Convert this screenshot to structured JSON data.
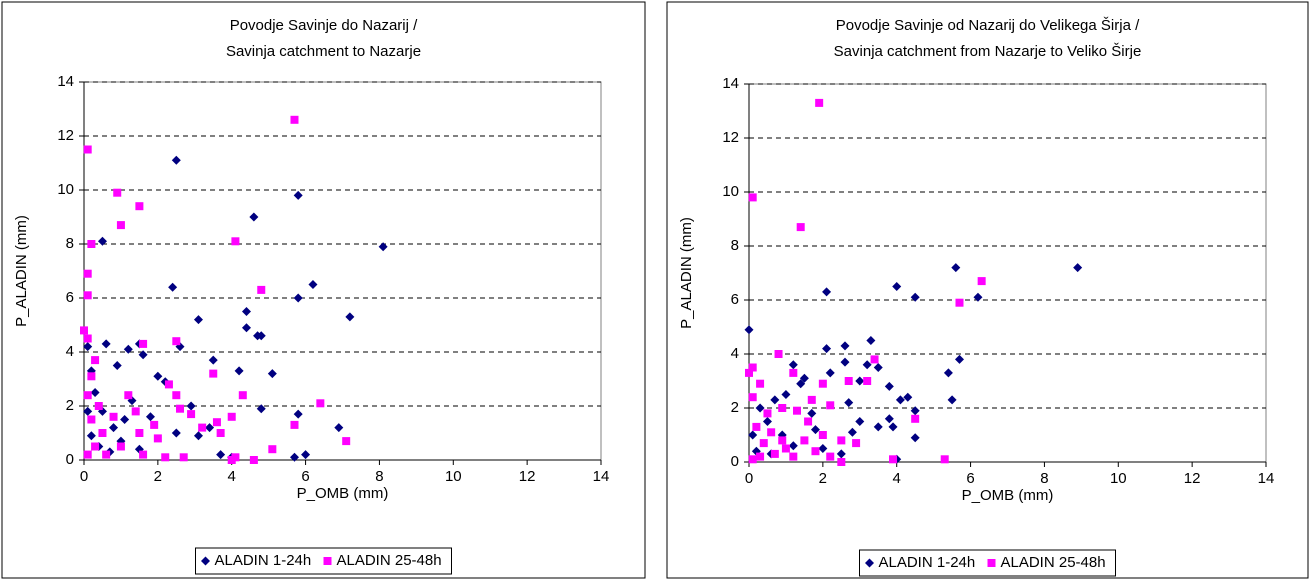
{
  "chart_data": [
    {
      "type": "scatter",
      "title": [
        "Povodje Savinje do Nazarij /",
        "Savinja catchment to Nazarje"
      ],
      "x_label": "P_OMB (mm)",
      "y_label": "P_ALADIN (mm)",
      "xlim": [
        0,
        14
      ],
      "ylim": [
        0,
        14
      ],
      "xticks": [
        0,
        2,
        4,
        6,
        8,
        10,
        12,
        14
      ],
      "yticks": [
        0,
        2,
        4,
        6,
        8,
        10,
        12,
        14
      ],
      "grid": true,
      "legend": "bottom",
      "series": [
        {
          "name": "ALADIN 1-24h",
          "color": "#000080",
          "marker": "diamond",
          "x": [
            2.5,
            5.8,
            4.6,
            8.1,
            0.5,
            7.2,
            6.2,
            5.8,
            4.4,
            4.8,
            4.7,
            4.4,
            2.4,
            3.1,
            2.6,
            3.5,
            4.2,
            5.1,
            4.8,
            5.8,
            6.9,
            5.7,
            6.0,
            4.0,
            3.7,
            3.1,
            2.0,
            1.5,
            1.2,
            0.6,
            0.9,
            1.6,
            2.2,
            2.9,
            3.4,
            0.3,
            0.5,
            0.8,
            1.0,
            1.3,
            1.8,
            0.2,
            0.1,
            0.4,
            0.7,
            1.5,
            2.5,
            0.2,
            0.1,
            1.1
          ],
          "values": [
            11.1,
            9.8,
            9.0,
            7.9,
            8.1,
            5.3,
            6.5,
            6.0,
            5.5,
            4.6,
            4.6,
            4.9,
            6.4,
            5.2,
            4.2,
            3.7,
            3.3,
            3.2,
            1.9,
            1.7,
            1.2,
            0.1,
            0.2,
            0.1,
            0.2,
            0.9,
            3.1,
            4.3,
            4.1,
            4.3,
            3.5,
            3.9,
            2.9,
            2.0,
            1.2,
            2.5,
            1.8,
            1.2,
            0.7,
            2.2,
            1.6,
            3.3,
            4.2,
            0.5,
            0.3,
            0.4,
            1.0,
            0.9,
            1.8,
            1.5
          ]
        },
        {
          "name": "ALADIN 25-48h",
          "color": "#ff00ff",
          "marker": "square",
          "x": [
            5.7,
            0.1,
            0.9,
            1.5,
            1.0,
            0.2,
            4.1,
            0.1,
            0.1,
            4.8,
            0,
            0.1,
            2.5,
            1.6,
            3.5,
            0.3,
            0.2,
            2.3,
            2.5,
            4.3,
            6.4,
            2.6,
            2.9,
            3.2,
            4.0,
            3.6,
            4.1,
            4.0,
            4.6,
            5.7,
            7.1,
            5.1,
            3.7,
            2.7,
            2.2,
            1.9,
            1.4,
            1.2,
            0.8,
            0.5,
            0.3,
            0.1,
            0.6,
            1.0,
            1.6,
            0.2,
            0.1,
            0.4,
            1.5,
            2.0
          ],
          "values": [
            12.6,
            11.5,
            9.9,
            9.4,
            8.7,
            8.0,
            8.1,
            6.9,
            6.1,
            6.3,
            4.8,
            4.5,
            4.4,
            4.3,
            3.2,
            3.7,
            3.1,
            2.8,
            2.4,
            2.4,
            2.1,
            1.9,
            1.7,
            1.2,
            1.6,
            1.4,
            0.1,
            0.0,
            0,
            1.3,
            0.7,
            0.4,
            1.0,
            0.1,
            0.1,
            1.3,
            1.8,
            2.4,
            1.6,
            1.0,
            0.5,
            0.2,
            0.2,
            0.5,
            0.2,
            1.5,
            2.4,
            2.0,
            1.0,
            0.8
          ]
        }
      ]
    },
    {
      "type": "scatter",
      "title": [
        "Povodje Savinje od Nazarij do Velikega Širja /",
        "Savinja catchment from Nazarje to Veliko Širje"
      ],
      "x_label": "P_OMB (mm)",
      "y_label": "P_ALADIN (mm)",
      "xlim": [
        0,
        14
      ],
      "ylim": [
        0,
        14
      ],
      "xticks": [
        0,
        2,
        4,
        6,
        8,
        10,
        12,
        14
      ],
      "yticks": [
        0,
        2,
        4,
        6,
        8,
        10,
        12,
        14
      ],
      "grid": true,
      "legend": "bottom",
      "series": [
        {
          "name": "ALADIN 1-24h",
          "color": "#000080",
          "marker": "diamond",
          "x": [
            8.9,
            5.6,
            6.2,
            4.0,
            4.5,
            2.1,
            0,
            5.7,
            5.4,
            5.5,
            4.5,
            4.3,
            4.1,
            4.0,
            3.3,
            2.6,
            2.1,
            2.6,
            3.2,
            3.5,
            3.0,
            2.2,
            2.7,
            1.5,
            1.2,
            1.4,
            3.8,
            3.9,
            4.5,
            3.5,
            3.0,
            1.0,
            0.7,
            0.3,
            0.5,
            0.9,
            1.2,
            1.7,
            2.0,
            2.5,
            0.1,
            0.2,
            0.6,
            1.8,
            2.8,
            3.8
          ],
          "values": [
            7.2,
            7.2,
            6.1,
            6.5,
            6.1,
            6.3,
            4.9,
            3.8,
            3.3,
            2.3,
            1.9,
            2.4,
            2.3,
            0.1,
            4.5,
            4.3,
            4.2,
            3.7,
            3.6,
            3.5,
            3.0,
            3.3,
            2.2,
            3.1,
            3.6,
            2.9,
            2.8,
            1.3,
            0.9,
            1.3,
            1.5,
            2.5,
            2.3,
            2.0,
            1.5,
            1.0,
            0.6,
            1.8,
            0.5,
            0.3,
            1.0,
            0.4,
            0.3,
            1.2,
            1.1,
            1.6
          ]
        },
        {
          "name": "ALADIN 25-48h",
          "color": "#ff00ff",
          "marker": "square",
          "x": [
            1.9,
            0.1,
            1.4,
            6.3,
            5.7,
            0.8,
            3.4,
            0.1,
            0,
            1.2,
            2.7,
            3.2,
            2.0,
            0.3,
            1.7,
            2.2,
            0.9,
            1.3,
            4.5,
            1.6,
            0.5,
            2.5,
            2.9,
            2.0,
            3.9,
            5.3,
            2.5,
            0.1,
            0.2,
            0.4,
            0.7,
            1.0,
            1.2,
            1.5,
            1.8,
            0.1,
            0.3,
            0.6,
            0.9,
            2.2
          ],
          "values": [
            13.3,
            9.8,
            8.7,
            6.7,
            5.9,
            4.0,
            3.8,
            3.5,
            3.3,
            3.3,
            3.0,
            3.0,
            2.9,
            2.9,
            2.3,
            2.1,
            2.0,
            1.9,
            1.6,
            1.5,
            1.8,
            0.8,
            0.7,
            1.0,
            0.1,
            0.1,
            0,
            2.4,
            1.3,
            0.7,
            0.3,
            0.5,
            0.2,
            0.8,
            0.4,
            0.1,
            0.2,
            1.1,
            0.8,
            0.2
          ]
        }
      ]
    }
  ]
}
